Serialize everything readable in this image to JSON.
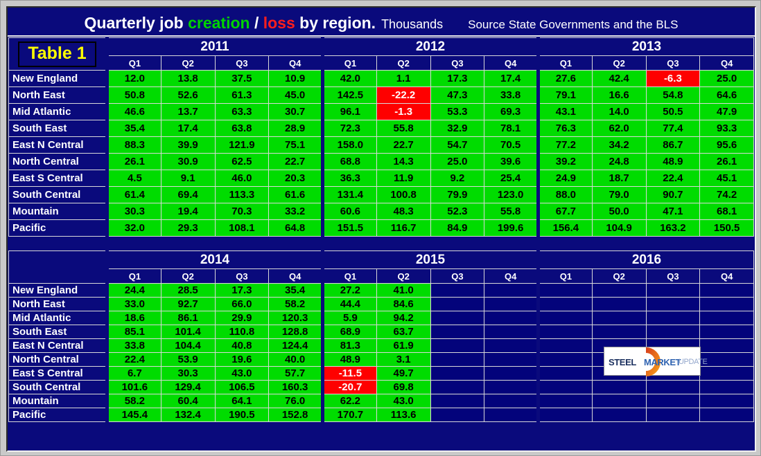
{
  "header": {
    "title_prefix": "Quarterly job",
    "title_creation": "creation",
    "title_slash": "/",
    "title_loss": "loss",
    "title_suffix": "by region.",
    "unit": "Thousands",
    "source": "Source State Governments and the BLS"
  },
  "logo": {
    "steel": "STEEL",
    "market": "MARKET",
    "update": "UPDATE"
  },
  "colors": {
    "panel_navy": "#0a0a7c",
    "cell_green": "#00dc00",
    "loss_cell_red": "#fe0000",
    "title_creation_green": "#00d400",
    "title_loss_red": "#ff1e1e",
    "table_label_yellow": "#ffff00",
    "frame_gray": "#c9c9c9",
    "gridline_white": "#d9d9d9",
    "logo_orange": "#f0641e"
  },
  "chart_data": [
    {
      "type": "table",
      "label": "Table 1",
      "title": "Quarterly job creation / loss by region",
      "units": "Thousands",
      "years": [
        "2011",
        "2012",
        "2013"
      ],
      "quarters": [
        "Q1",
        "Q2",
        "Q3",
        "Q4"
      ],
      "regions": [
        "New England",
        "North East",
        "Mid Atlantic",
        "South East",
        "East N Central",
        "North Central",
        "East S Central",
        "South Central",
        "Mountain",
        "Pacific"
      ],
      "rows": [
        [
          "12.0",
          "13.8",
          "37.5",
          "10.9",
          "42.0",
          "1.1",
          "17.3",
          "17.4",
          "27.6",
          "42.4",
          "-6.3",
          "25.0"
        ],
        [
          "50.8",
          "52.6",
          "61.3",
          "45.0",
          "142.5",
          "-22.2",
          "47.3",
          "33.8",
          "79.1",
          "16.6",
          "54.8",
          "64.6"
        ],
        [
          "46.6",
          "13.7",
          "63.3",
          "30.7",
          "96.1",
          "-1.3",
          "53.3",
          "69.3",
          "43.1",
          "14.0",
          "50.5",
          "47.9"
        ],
        [
          "35.4",
          "17.4",
          "63.8",
          "28.9",
          "72.3",
          "55.8",
          "32.9",
          "78.1",
          "76.3",
          "62.0",
          "77.4",
          "93.3"
        ],
        [
          "88.3",
          "39.9",
          "121.9",
          "75.1",
          "158.0",
          "22.7",
          "54.7",
          "70.5",
          "77.2",
          "34.2",
          "86.7",
          "95.6"
        ],
        [
          "26.1",
          "30.9",
          "62.5",
          "22.7",
          "68.8",
          "14.3",
          "25.0",
          "39.6",
          "39.2",
          "24.8",
          "48.9",
          "26.1"
        ],
        [
          "4.5",
          "9.1",
          "46.0",
          "20.3",
          "36.3",
          "11.9",
          "9.2",
          "25.4",
          "24.9",
          "18.7",
          "22.4",
          "45.1"
        ],
        [
          "61.4",
          "69.4",
          "113.3",
          "61.6",
          "131.4",
          "100.8",
          "79.9",
          "123.0",
          "88.0",
          "79.0",
          "90.7",
          "74.2"
        ],
        [
          "30.3",
          "19.4",
          "70.3",
          "33.2",
          "60.6",
          "48.3",
          "52.3",
          "55.8",
          "67.7",
          "50.0",
          "47.1",
          "68.1"
        ],
        [
          "32.0",
          "29.3",
          "108.1",
          "64.8",
          "151.5",
          "116.7",
          "84.9",
          "199.6",
          "156.4",
          "104.9",
          "163.2",
          "150.5"
        ]
      ]
    },
    {
      "type": "table",
      "label": "",
      "title": "Quarterly job creation / loss by region (continued)",
      "units": "Thousands",
      "years": [
        "2014",
        "2015",
        "2016"
      ],
      "quarters": [
        "Q1",
        "Q2",
        "Q3",
        "Q4"
      ],
      "regions": [
        "New England",
        "North East",
        "Mid Atlantic",
        "South East",
        "East N Central",
        "North Central",
        "East S Central",
        "South Central",
        "Mountain",
        "Pacific"
      ],
      "rows": [
        [
          "24.4",
          "28.5",
          "17.3",
          "35.4",
          "27.2",
          "41.0",
          "",
          "",
          "",
          "",
          "",
          ""
        ],
        [
          "33.0",
          "92.7",
          "66.0",
          "58.2",
          "44.4",
          "84.6",
          "",
          "",
          "",
          "",
          "",
          ""
        ],
        [
          "18.6",
          "86.1",
          "29.9",
          "120.3",
          "5.9",
          "94.2",
          "",
          "",
          "",
          "",
          "",
          ""
        ],
        [
          "85.1",
          "101.4",
          "110.8",
          "128.8",
          "68.9",
          "63.7",
          "",
          "",
          "",
          "",
          "",
          ""
        ],
        [
          "33.8",
          "104.4",
          "40.8",
          "124.4",
          "81.3",
          "61.9",
          "",
          "",
          "",
          "",
          "",
          ""
        ],
        [
          "22.4",
          "53.9",
          "19.6",
          "40.0",
          "48.9",
          "3.1",
          "",
          "",
          "",
          "",
          "",
          ""
        ],
        [
          "6.7",
          "30.3",
          "43.0",
          "57.7",
          "-11.5",
          "49.7",
          "",
          "",
          "",
          "",
          "",
          ""
        ],
        [
          "101.6",
          "129.4",
          "106.5",
          "160.3",
          "-20.7",
          "69.8",
          "",
          "",
          "",
          "",
          "",
          ""
        ],
        [
          "58.2",
          "60.4",
          "64.1",
          "76.0",
          "62.2",
          "43.0",
          "",
          "",
          "",
          "",
          "",
          ""
        ],
        [
          "145.4",
          "132.4",
          "190.5",
          "152.8",
          "170.7",
          "113.6",
          "",
          "",
          "",
          "",
          "",
          ""
        ]
      ]
    }
  ]
}
